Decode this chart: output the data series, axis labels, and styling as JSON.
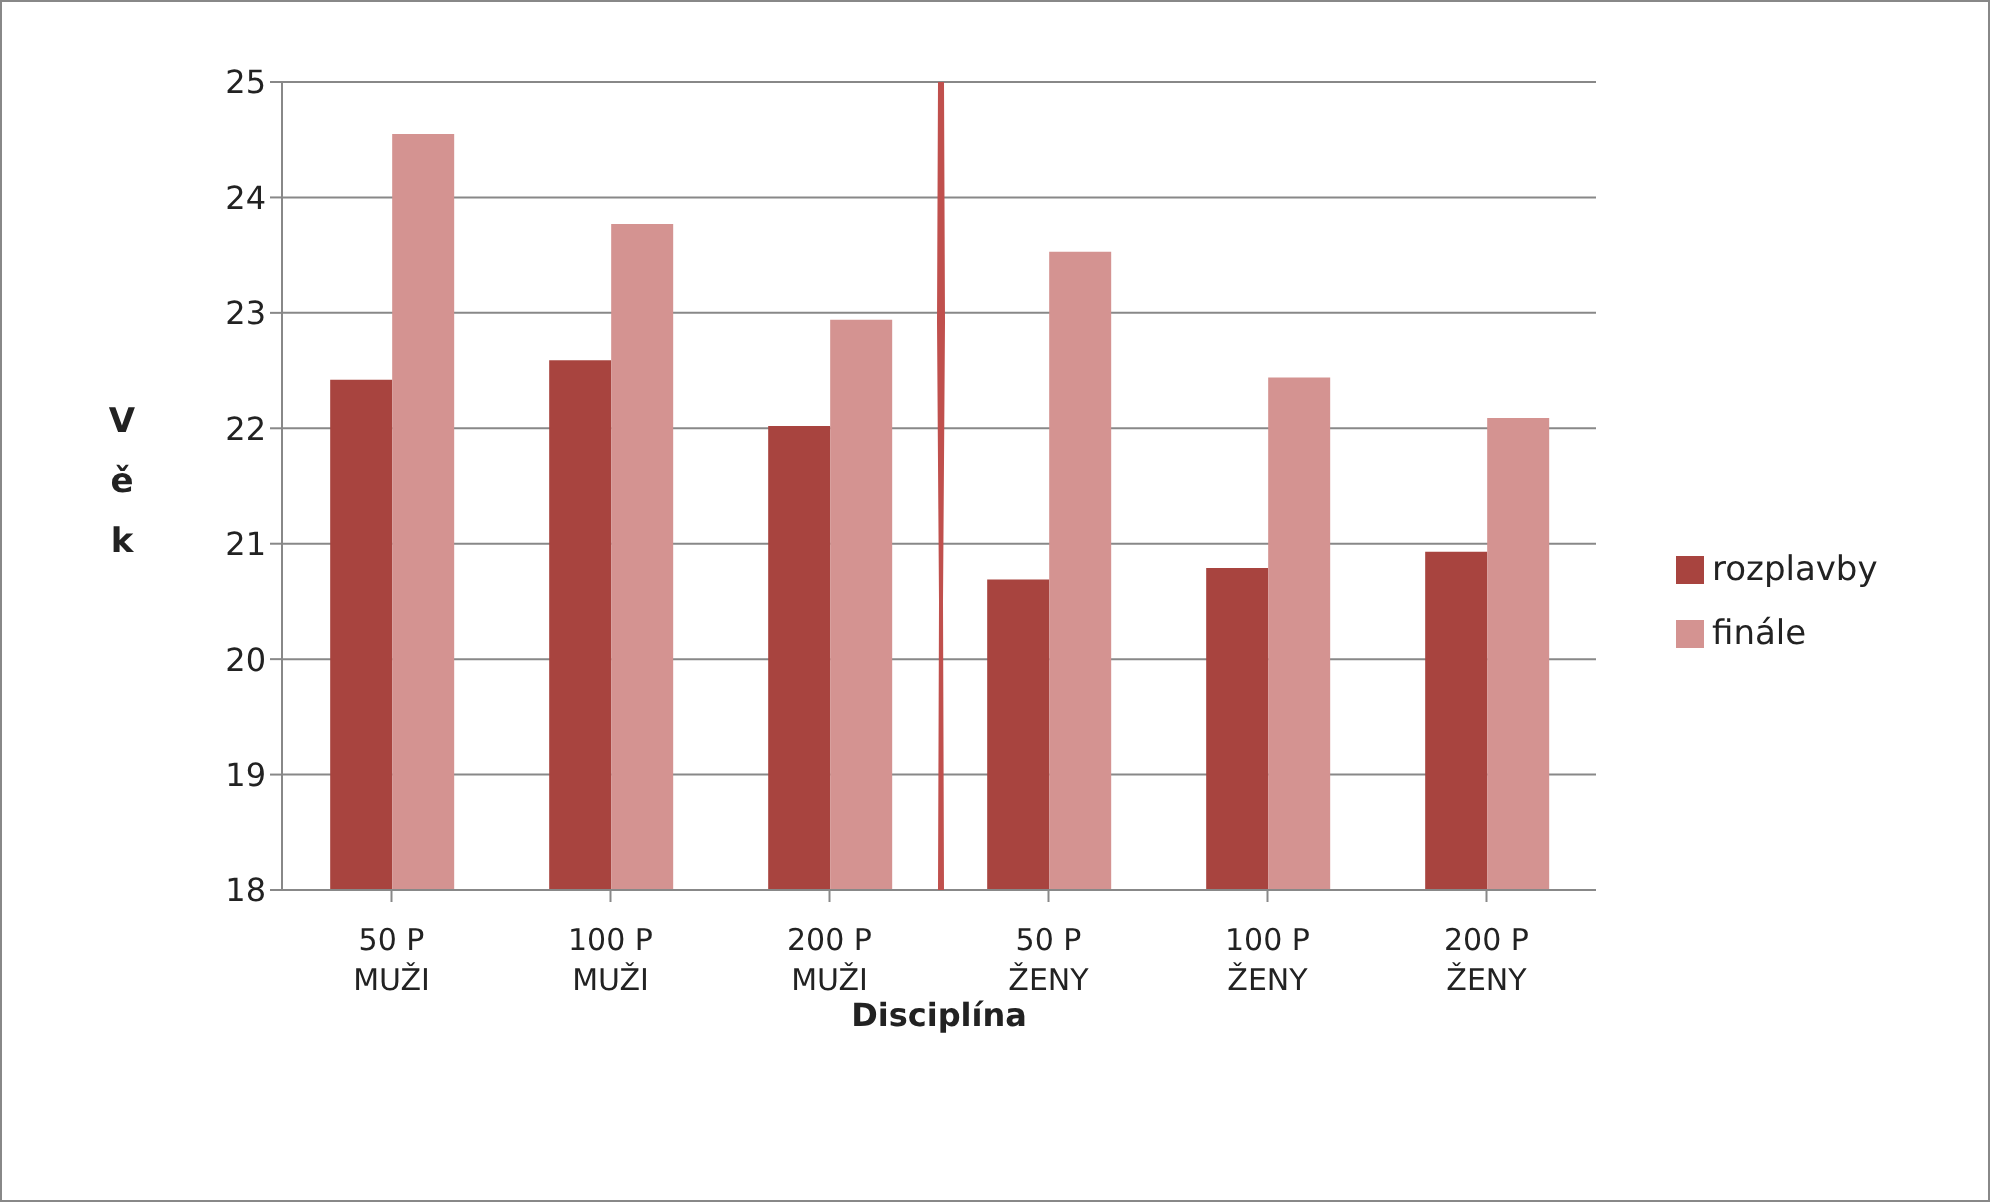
{
  "chart_data": {
    "type": "bar",
    "xlabel": "Disciplína",
    "ylabel": "Věk",
    "categories": [
      "50 P MUŽI",
      "100 P MUŽI",
      "200 P MUŽI",
      "50 P ŽENY",
      "100 P ŽENY",
      "200 P ŽENY"
    ],
    "series": [
      {
        "name": "rozplavby",
        "color": "#a8443f",
        "values": [
          22.42,
          22.59,
          22.02,
          20.69,
          20.79,
          20.93
        ]
      },
      {
        "name": "finále",
        "color": "#d49391",
        "values": [
          24.55,
          23.77,
          22.94,
          23.53,
          22.44,
          22.09
        ]
      }
    ],
    "ylim": [
      18,
      25
    ],
    "yticks": [
      18,
      19,
      20,
      21,
      22,
      23,
      24,
      25
    ],
    "grid": "y",
    "legend": "right"
  }
}
